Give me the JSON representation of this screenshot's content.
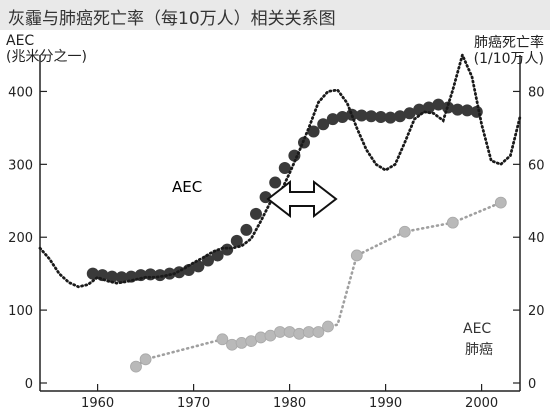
{
  "header": {
    "title": "灰霾与肺癌死亡率（每10万人）相关关系图",
    "left_axis_title_line1": "AEC",
    "left_axis_title_line2": "(兆米分之一)",
    "right_axis_title_line1": "肺癌死亡率",
    "right_axis_title_line2": "(1/10万人)"
  },
  "chart_data": {
    "type": "line",
    "x_ticks": [
      1960,
      1970,
      1980,
      1990,
      2000
    ],
    "y_left_ticks": [
      0,
      100,
      200,
      300,
      400
    ],
    "y_right_ticks": [
      0,
      20,
      40,
      60,
      80
    ],
    "xlim": [
      1954,
      2004
    ],
    "ylim_left": [
      0,
      450
    ],
    "ylim_right": [
      0,
      90
    ],
    "annotations": {
      "aec_label": "AEC",
      "legend_aec": "AEC",
      "legend_cancer": "肺癌"
    },
    "colors": {
      "aec": "#3a3a3a",
      "cancer": "#b9b9b9",
      "dotted": "#1a1a1a"
    },
    "series": [
      {
        "axis": "left",
        "style": "large-dark-markers",
        "x": [
          1959.5,
          1960.5,
          1961.5,
          1962.5,
          1963.5,
          1964.5,
          1965.5,
          1966.5,
          1967.5,
          1968.5,
          1969.5,
          1970.5,
          1971.5,
          1972.5,
          1973.5,
          1974.5,
          1975.5,
          1976.5,
          1977.5,
          1978.5,
          1979.5,
          1980.5,
          1981.5,
          1982.5,
          1983.5,
          1984.5,
          1985.5,
          1986.5,
          1987.5,
          1988.5,
          1989.5,
          1990.5,
          1991.5,
          1992.5,
          1993.5,
          1994.5,
          1995.5,
          1996.5,
          1997.5,
          1998.5,
          1999.5
        ],
        "values": [
          150,
          148,
          146,
          145,
          146,
          148,
          149,
          148,
          150,
          152,
          155,
          160,
          168,
          175,
          183,
          195,
          210,
          232,
          255,
          275,
          295,
          312,
          330,
          345,
          355,
          362,
          365,
          368,
          367,
          366,
          365,
          364,
          366,
          370,
          375,
          378,
          382,
          378,
          375,
          374,
          372
        ]
      },
      {
        "axis": "left",
        "style": "dotted",
        "x": [
          1954,
          1955,
          1956,
          1957,
          1958,
          1959,
          1960,
          1961,
          1962,
          1963,
          1964,
          1965,
          1966,
          1967,
          1968,
          1969,
          1970,
          1971,
          1972,
          1973,
          1974,
          1975,
          1976,
          1977,
          1978,
          1979,
          1980,
          1981,
          1982,
          1983,
          1984,
          1985,
          1986,
          1987,
          1988,
          1989,
          1990,
          1991,
          1992,
          1993,
          1994,
          1995,
          1996,
          1997,
          1998,
          1999,
          2000,
          2001,
          2002,
          2003,
          2004
        ],
        "values": [
          185,
          170,
          150,
          138,
          132,
          135,
          145,
          140,
          137,
          139,
          142,
          145,
          145,
          147,
          150,
          157,
          165,
          172,
          180,
          185,
          185,
          188,
          198,
          222,
          248,
          260,
          288,
          318,
          350,
          385,
          400,
          402,
          384,
          350,
          320,
          300,
          292,
          300,
          330,
          362,
          372,
          370,
          360,
          402,
          450,
          420,
          355,
          305,
          300,
          312,
          365
        ]
      },
      {
        "axis": "right",
        "style": "light-markers",
        "x": [
          1964,
          1965,
          1973,
          1974,
          1975,
          1976,
          1977,
          1978,
          1979,
          1980,
          1981,
          1982,
          1983,
          1984,
          1987,
          1992,
          1997,
          2002
        ],
        "values": [
          4.5,
          6.5,
          12,
          10.5,
          11,
          11.5,
          12.5,
          13,
          14,
          14,
          13.5,
          14,
          14,
          15.5,
          35,
          41.5,
          44,
          49.5
        ]
      },
      {
        "axis": "right",
        "style": "dotted-light",
        "x": [
          1964,
          1965,
          1973,
          1974,
          1975,
          1976,
          1977,
          1978,
          1979,
          1980,
          1981,
          1982,
          1983,
          1984,
          1985,
          1987,
          1992,
          1997,
          2002
        ],
        "values": [
          4.5,
          6.5,
          12,
          10.5,
          11,
          11.5,
          12.5,
          13,
          14,
          14,
          13.5,
          14,
          14,
          15.5,
          16,
          35,
          41.5,
          44,
          49.5
        ]
      }
    ]
  }
}
